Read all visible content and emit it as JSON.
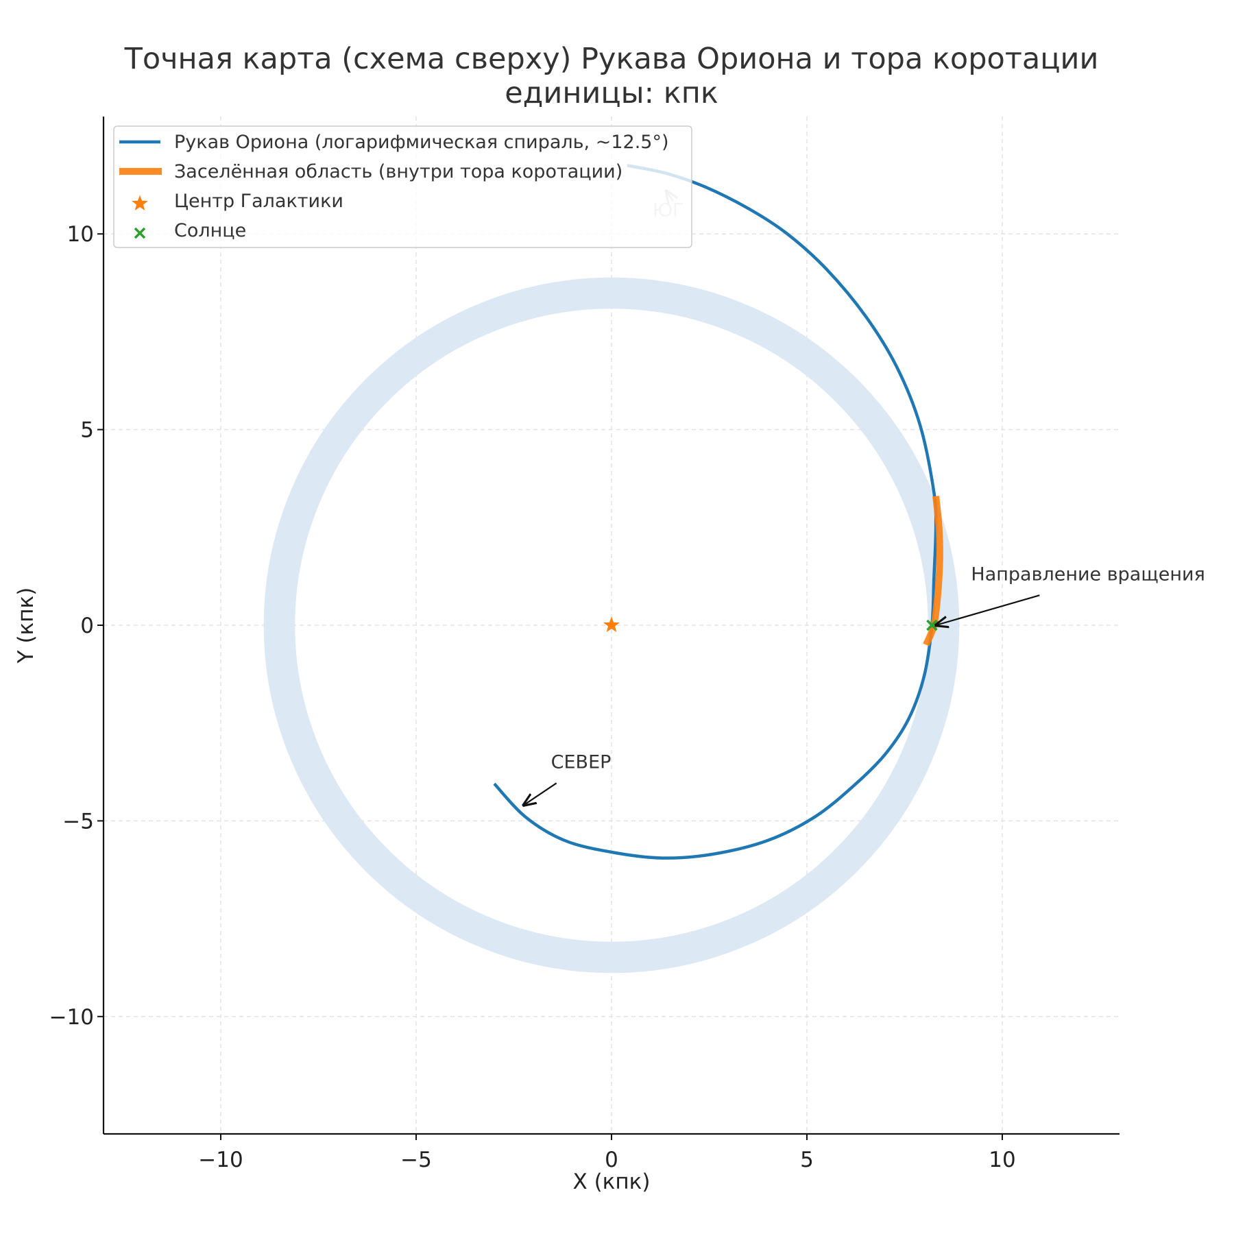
{
  "chart_data": {
    "type": "line",
    "title_line1": "Точная карта (схема сверху) Рукава Ориона и тора коротации",
    "title_line2": "единицы: кпк",
    "xlabel": "X (кпк)",
    "ylabel": "Y (кпк)",
    "xlim": [
      -13,
      13
    ],
    "ylim": [
      -13,
      13
    ],
    "xticks": [
      -10,
      -5,
      0,
      5,
      10
    ],
    "yticks": [
      -10,
      -5,
      0,
      5,
      10
    ],
    "tick_labels": {
      "-10": "−10",
      "-5": "−5",
      "0": "0",
      "5": "5",
      "10": "10"
    },
    "grid": true,
    "legend_position": "top-left",
    "legend": [
      {
        "label": "Рукав Ориона (логарифмическая спираль, ~12.5°)",
        "marker": "line",
        "color": "#1f77b4"
      },
      {
        "label": "Заселённая область (внутри тора коротации)",
        "marker": "thick-line",
        "color": "#ff7f0e"
      },
      {
        "label": "Центр Галактики",
        "marker": "star",
        "color": "#ff7f0e"
      },
      {
        "label": "Солнце",
        "marker": "x",
        "color": "#2ca02c"
      }
    ],
    "series": [
      {
        "name": "Рукав Ориона (логарифмическая спираль, ~12.5°)",
        "color": "#1f77b4",
        "points": [
          [
            0.4,
            11.75
          ],
          [
            1.4,
            11.55
          ],
          [
            2.4,
            11.2
          ],
          [
            3.5,
            10.65
          ],
          [
            4.5,
            10.0
          ],
          [
            5.5,
            9.1
          ],
          [
            6.5,
            7.9
          ],
          [
            7.3,
            6.6
          ],
          [
            7.9,
            5.1
          ],
          [
            8.25,
            3.4
          ],
          [
            8.3,
            2.5
          ],
          [
            8.25,
            1.2
          ],
          [
            8.2,
            0.0
          ],
          [
            8.0,
            -1.3
          ],
          [
            7.6,
            -2.4
          ],
          [
            7.0,
            -3.3
          ],
          [
            6.2,
            -4.1
          ],
          [
            5.2,
            -4.9
          ],
          [
            4.0,
            -5.5
          ],
          [
            2.6,
            -5.85
          ],
          [
            1.3,
            -5.95
          ],
          [
            0.0,
            -5.8
          ],
          [
            -1.2,
            -5.5
          ],
          [
            -2.2,
            -4.9
          ],
          [
            -3.0,
            -4.05
          ]
        ]
      },
      {
        "name": "Заселённая область (внутри тора коротации)",
        "color": "#ff7f0e",
        "points": [
          [
            8.3,
            3.3
          ],
          [
            8.38,
            2.5
          ],
          [
            8.4,
            1.7
          ],
          [
            8.35,
            0.8
          ],
          [
            8.25,
            0.0
          ],
          [
            8.05,
            -0.5
          ]
        ]
      }
    ],
    "torus": {
      "center": [
        0,
        0
      ],
      "inner_radius": 8.1,
      "outer_radius": 8.9,
      "color": "#dce8f3"
    },
    "points": [
      {
        "name": "Центр Галактики",
        "x": 0,
        "y": 0,
        "marker": "star",
        "color": "#ff7f0e"
      },
      {
        "name": "Солнце",
        "x": 8.2,
        "y": 0,
        "marker": "x",
        "color": "#2ca02c"
      }
    ],
    "annotations": [
      {
        "text": "Направление вращения",
        "text_x": 9.2,
        "text_y": 1.15,
        "arrow_x": 8.3,
        "arrow_y": 0.0
      },
      {
        "text": "СЕВЕР",
        "text_x": -1.55,
        "text_y": -3.65,
        "arrow_x": -2.25,
        "arrow_y": -4.6
      },
      {
        "text": "ЮГ",
        "text_x": 1.05,
        "text_y": 10.45,
        "arrow_x": 1.4,
        "arrow_y": 11.1,
        "faded": true
      }
    ]
  }
}
